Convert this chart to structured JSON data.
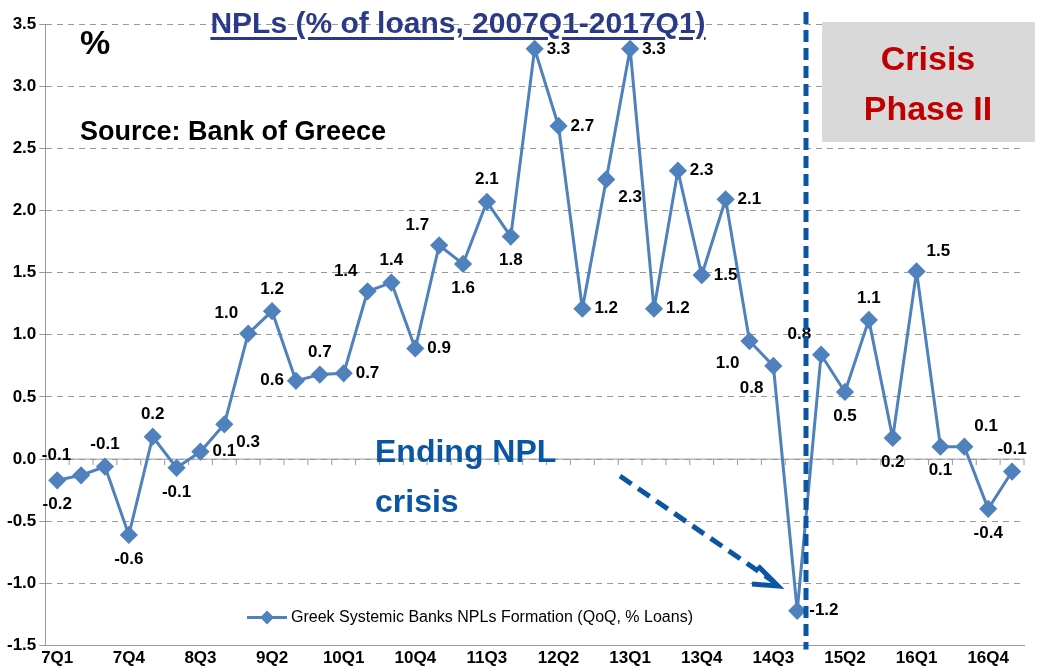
{
  "chart_data": {
    "type": "line",
    "title": "NPLs (% of loans, 2007Q1-2017Q1)",
    "ylabel": "%",
    "annotations": [
      "Source: Bank of Greece",
      "Ending NPL crisis",
      "Crisis Phase II"
    ],
    "categories": [
      "7Q1",
      null,
      null,
      "7Q4",
      null,
      null,
      "8Q3",
      null,
      null,
      "9Q2",
      null,
      null,
      "10Q1",
      null,
      null,
      "10Q4",
      null,
      null,
      "11Q3",
      null,
      null,
      "12Q2",
      null,
      null,
      "13Q1",
      null,
      null,
      "13Q4",
      null,
      null,
      "14Q3",
      null,
      null,
      "15Q2",
      null,
      null,
      "16Q1",
      null,
      null,
      "16Q4",
      null
    ],
    "series": [
      {
        "name": "Greek Systemic Banks NPLs Formation (QoQ, % Loans)",
        "color": "#4f81bd",
        "values": [
          -0.17,
          -0.13,
          -0.06,
          -0.61,
          0.18,
          -0.07,
          0.06,
          0.28,
          1.01,
          1.19,
          0.63,
          0.68,
          0.69,
          1.35,
          1.42,
          0.89,
          1.72,
          1.57,
          2.07,
          1.79,
          3.3,
          2.68,
          1.21,
          2.25,
          3.3,
          1.21,
          2.32,
          1.48,
          2.09,
          0.95,
          0.75,
          -1.22,
          0.84,
          0.54,
          1.12,
          0.17,
          1.51,
          0.1,
          0.1,
          -0.4,
          -0.1
        ],
        "value_labels": [
          "-0.2",
          "-0.1",
          "-0.1",
          "-0.6",
          "0.2",
          "-0.1",
          "0.1",
          "0.3",
          "1.0",
          "1.2",
          "0.6",
          "0.7",
          "0.7",
          "1.4",
          "1.4",
          "0.9",
          "1.7",
          "1.6",
          "2.1",
          "1.8",
          "3.3",
          "2.7",
          "1.2",
          "2.3",
          "3.3",
          "1.2",
          "2.3",
          "1.5",
          "2.1",
          "1.0",
          "0.8",
          "-1.2",
          "0.8",
          "0.5",
          "1.1",
          "0.2",
          "1.5",
          "0.1",
          "0.1",
          "-0.4",
          "-0.1"
        ]
      }
    ],
    "ylim": [
      -1.5,
      3.5
    ],
    "yticks": [
      {
        "value": -1.5,
        "label": "-1.5"
      },
      {
        "value": -1,
        "label": "-1.0"
      },
      {
        "value": -0.5,
        "label": "-0.5"
      },
      {
        "value": 0,
        "label": "0.0"
      },
      {
        "value": 0.5,
        "label": "0.5"
      },
      {
        "value": 1,
        "label": "1.0"
      },
      {
        "value": 1.5,
        "label": "1.5"
      },
      {
        "value": 2,
        "label": "2.0"
      },
      {
        "value": 2.5,
        "label": "2.5"
      },
      {
        "value": 3,
        "label": "3.0"
      },
      {
        "value": 3.5,
        "label": "3.5"
      }
    ],
    "grid": "y",
    "legend": "bottom",
    "marker": "diamond",
    "line_style": "solid"
  }
}
